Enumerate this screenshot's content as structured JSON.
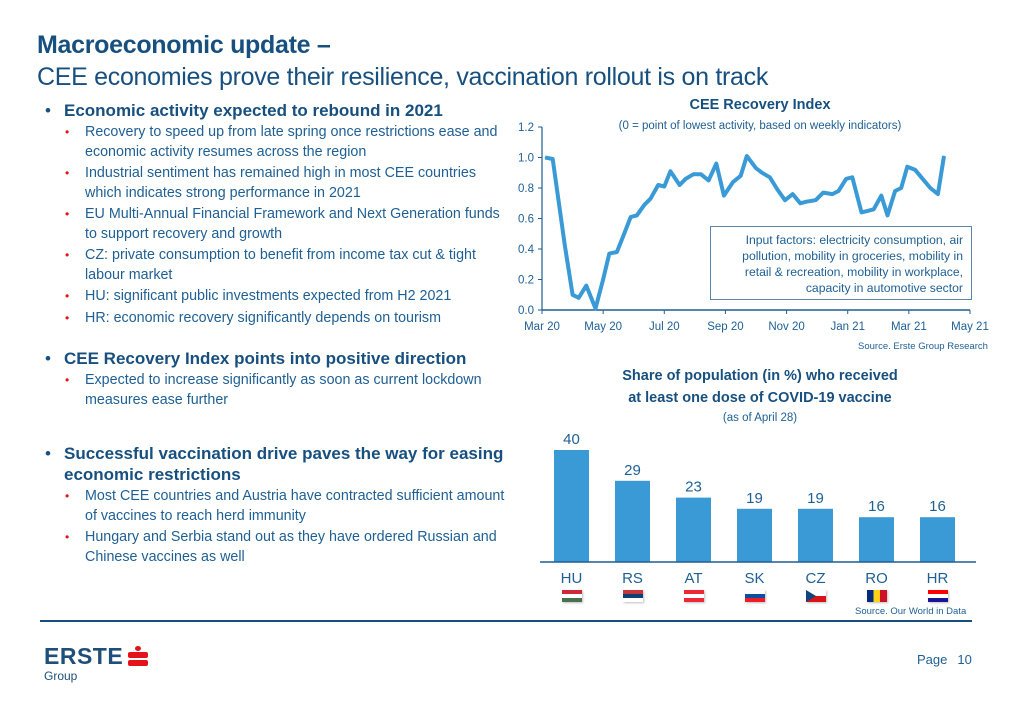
{
  "header": {
    "title_line1": "Macroeconomic update –",
    "title_line2": "CEE economies prove their resilience, vaccination rollout is on track"
  },
  "sections": [
    {
      "heading": "Economic activity expected to rebound in 2021",
      "items": [
        "Recovery to speed up from late spring once restrictions ease and economic activity resumes across the region",
        "Industrial sentiment has remained high in most CEE countries which indicates strong performance in 2021",
        "EU Multi-Annual Financial Framework and Next Generation funds to support recovery and growth",
        "CZ: private consumption to benefit from income tax cut & tight labour market",
        "HU: significant public investments expected from H2 2021",
        "HR: economic recovery significantly depends on tourism"
      ]
    },
    {
      "heading": "CEE Recovery Index points into positive direction",
      "items": [
        "Expected to increase significantly as soon as current lockdown measures ease further"
      ]
    },
    {
      "heading": "Successful vaccination drive paves the way for easing economic restrictions",
      "items": [
        "Most CEE countries and Austria have contracted sufficient amount of vaccines to reach herd immunity",
        "Hungary and Serbia stand out as they have ordered Russian and Chinese vaccines as well"
      ]
    }
  ],
  "colors": {
    "brand_blue": "#174f7f",
    "series_blue": "#3a9ad6",
    "accent_red": "#e3131b"
  },
  "chart_data": [
    {
      "type": "line",
      "title": "CEE Recovery Index",
      "subtitle": "(0 = point of lowest activity, based on weekly indicators)",
      "xlabel": "",
      "ylabel": "",
      "ylim": [
        0,
        1.2
      ],
      "yticks": [
        "0.0",
        "0.2",
        "0.4",
        "0.6",
        "0.8",
        "1.0",
        "1.2"
      ],
      "xticks": [
        "Mar 20",
        "May 20",
        "Jul 20",
        "Sep 20",
        "Nov 20",
        "Jan 21",
        "Mar 21",
        "May 21"
      ],
      "x_range_months": [
        0,
        14
      ],
      "grid": false,
      "series": [
        {
          "name": "CEE Recovery Index",
          "x_months": [
            0.1,
            0.35,
            0.75,
            1.0,
            1.2,
            1.45,
            1.75,
            2.0,
            2.2,
            2.45,
            2.65,
            2.9,
            3.1,
            3.35,
            3.55,
            3.8,
            4.0,
            4.2,
            4.5,
            4.7,
            4.95,
            5.2,
            5.45,
            5.7,
            5.95,
            6.25,
            6.5,
            6.7,
            7.0,
            7.2,
            7.45,
            7.7,
            7.95,
            8.2,
            8.45,
            8.65,
            8.95,
            9.2,
            9.5,
            9.7,
            9.95,
            10.15,
            10.45,
            10.65,
            10.85,
            11.1,
            11.3,
            11.55,
            11.75,
            11.95,
            12.2,
            12.45,
            12.7,
            12.95,
            13.15
          ],
          "values": [
            1.0,
            0.99,
            0.42,
            0.1,
            0.08,
            0.16,
            0.01,
            0.2,
            0.37,
            0.38,
            0.48,
            0.61,
            0.62,
            0.69,
            0.73,
            0.82,
            0.81,
            0.91,
            0.82,
            0.86,
            0.89,
            0.89,
            0.85,
            0.96,
            0.75,
            0.84,
            0.88,
            1.01,
            0.93,
            0.9,
            0.87,
            0.79,
            0.72,
            0.76,
            0.7,
            0.71,
            0.72,
            0.77,
            0.76,
            0.78,
            0.86,
            0.87,
            0.64,
            0.65,
            0.66,
            0.75,
            0.62,
            0.78,
            0.8,
            0.94,
            0.92,
            0.86,
            0.8,
            0.76,
            1.01
          ]
        }
      ],
      "annotation": "Input factors: electricity consumption, air pollution, mobility in groceries, mobility in retail & recreation, mobility in workplace, capacity in automotive sector",
      "source": "Source. Erste Group Research"
    },
    {
      "type": "bar",
      "title_line1": "Share of population (in %)  who received",
      "title_line2": "at least one dose of COVID-19 vaccine",
      "subtitle": "(as of April 28)",
      "categories": [
        "HU",
        "RS",
        "AT",
        "SK",
        "CZ",
        "RO",
        "HR"
      ],
      "values": [
        40,
        29,
        23,
        19,
        19,
        16,
        16
      ],
      "data_labels": [
        "40",
        "29",
        "23",
        "19",
        "19",
        "16",
        "16"
      ],
      "ylim": [
        0,
        40
      ],
      "grid": false,
      "flags": [
        "hungary-flag",
        "serbia-flag",
        "austria-flag",
        "slovakia-flag",
        "czechia-flag",
        "romania-flag",
        "croatia-flag"
      ],
      "source": "Source. Our World in Data"
    }
  ],
  "footer": {
    "logo_text": "ERSTE",
    "logo_sub": "Group",
    "page_label": "Page",
    "page_number": "10"
  }
}
